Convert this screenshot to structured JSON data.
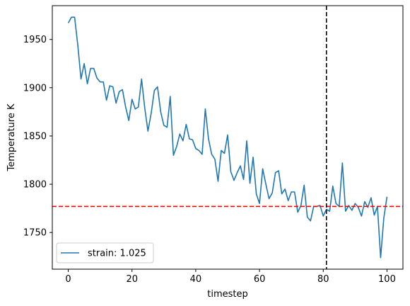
{
  "chart_data": {
    "type": "line",
    "title": "",
    "xlabel": "timestep",
    "ylabel": "Temperature K",
    "xlim": [
      -5,
      105
    ],
    "ylim": [
      1712,
      1985
    ],
    "xticks": [
      0,
      20,
      40,
      60,
      80,
      100
    ],
    "yticks": [
      1750,
      1800,
      1850,
      1900,
      1950
    ],
    "grid": false,
    "legend_position": "lower-left",
    "series": [
      {
        "name": "strain: 1.025",
        "color": "#1f77b4",
        "x": [
          0,
          1,
          2,
          3,
          4,
          5,
          6,
          7,
          8,
          9,
          10,
          11,
          12,
          13,
          14,
          15,
          16,
          17,
          18,
          19,
          20,
          21,
          22,
          23,
          24,
          25,
          26,
          27,
          28,
          29,
          30,
          31,
          32,
          33,
          34,
          35,
          36,
          37,
          38,
          39,
          40,
          41,
          42,
          43,
          44,
          45,
          46,
          47,
          48,
          49,
          50,
          51,
          52,
          53,
          54,
          55,
          56,
          57,
          58,
          59,
          60,
          61,
          62,
          63,
          64,
          65,
          66,
          67,
          68,
          69,
          70,
          71,
          72,
          73,
          74,
          75,
          76,
          77,
          78,
          79,
          80,
          81,
          82,
          83,
          84,
          85,
          86,
          87,
          88,
          89,
          90,
          91,
          92,
          93,
          94,
          95,
          96,
          97,
          98,
          99,
          100
        ],
        "y": [
          1967,
          1973,
          1973,
          1944,
          1909,
          1925,
          1904,
          1920,
          1920,
          1910,
          1906,
          1906,
          1887,
          1902,
          1901,
          1884,
          1896,
          1898,
          1880,
          1866,
          1888,
          1878,
          1880,
          1909,
          1879,
          1855,
          1873,
          1897,
          1901,
          1875,
          1861,
          1859,
          1891,
          1830,
          1839,
          1852,
          1845,
          1862,
          1847,
          1846,
          1837,
          1835,
          1831,
          1878,
          1847,
          1831,
          1826,
          1803,
          1835,
          1832,
          1851,
          1813,
          1804,
          1812,
          1819,
          1805,
          1845,
          1801,
          1828,
          1790,
          1780,
          1816,
          1800,
          1785,
          1791,
          1812,
          1814,
          1790,
          1795,
          1783,
          1792,
          1792,
          1771,
          1778,
          1799,
          1766,
          1762,
          1777,
          1777,
          1778,
          1767,
          1774,
          1772,
          1798,
          1780,
          1777,
          1822,
          1772,
          1778,
          1773,
          1780,
          1776,
          1767,
          1782,
          1776,
          1786,
          1768,
          1777,
          1724,
          1765,
          1787
        ]
      }
    ],
    "reference_lines": [
      {
        "orientation": "horizontal",
        "value": 1777,
        "color": "#ff0000",
        "style": "dashed"
      },
      {
        "orientation": "vertical",
        "value": 81,
        "color": "#000000",
        "style": "dashed"
      }
    ]
  }
}
